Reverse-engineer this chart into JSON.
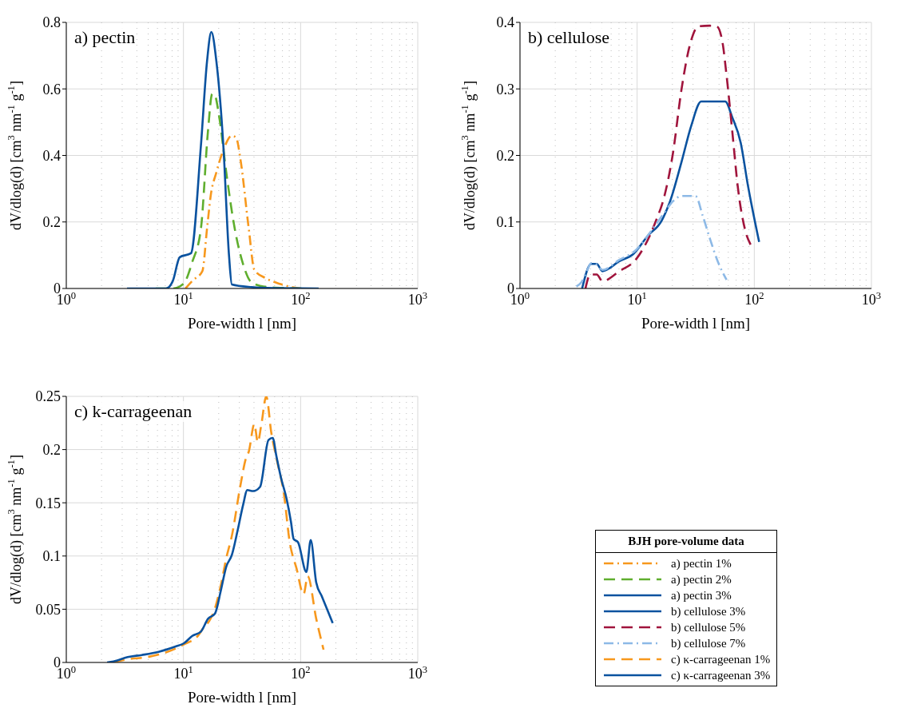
{
  "chart_data": [
    {
      "type": "line",
      "title": "a) pectin",
      "xlabel": "Pore-width l [nm]",
      "ylabel": "dV/dlog(d) [cm$^{3}$ nm$^{-1}$ g$^{-1}$]",
      "log": "x",
      "grid": true,
      "legend": "bottom right",
      "xlim": [
        1,
        1000
      ],
      "ylim": [
        0,
        0.8
      ],
      "yticks": [
        0,
        0.2,
        0.4,
        0.6,
        0.8
      ],
      "xticks": [
        {
          "value": 1,
          "label": "10$^{0}$"
        },
        {
          "value": 2,
          "label": null
        },
        {
          "value": 3,
          "label": null
        },
        {
          "value": 4,
          "label": null
        },
        {
          "value": 5,
          "label": null
        },
        {
          "value": 6,
          "label": null
        },
        {
          "value": 7,
          "label": null
        },
        {
          "value": 8,
          "label": null
        },
        {
          "value": 9,
          "label": null
        },
        {
          "value": 10,
          "label": "10$^{1}$"
        },
        {
          "value": 20,
          "label": null
        },
        {
          "value": 30,
          "label": null
        },
        {
          "value": 40,
          "label": null
        },
        {
          "value": 50,
          "label": null
        },
        {
          "value": 60,
          "label": null
        },
        {
          "value": 70,
          "label": null
        },
        {
          "value": 80,
          "label": null
        },
        {
          "value": 90,
          "label": null
        },
        {
          "value": 100,
          "label": "10$^{2}$"
        },
        {
          "value": 200,
          "label": null
        },
        {
          "value": 300,
          "label": null
        },
        {
          "value": 400,
          "label": null
        },
        {
          "value": 500,
          "label": null
        },
        {
          "value": 600,
          "label": null
        },
        {
          "value": 700,
          "label": null
        },
        {
          "value": 800,
          "label": null
        },
        {
          "value": 900,
          "label": null
        },
        {
          "value": 1000,
          "label": "10$^{3}$"
        }
      ],
      "series": [
        {
          "name": "a) pectin 1%",
          "color": "#f7981d",
          "line_style": "dashdot",
          "x": [
            10.4,
            11.9,
            14.5,
            15.9,
            17.1,
            19.1,
            21.9,
            25.9,
            28.2,
            30.6,
            36.1,
            40.3,
            50.3,
            66.4,
            87.5,
            100
          ],
          "values": [
            0,
            0.023,
            0.052,
            0.18,
            0.28,
            0.349,
            0.416,
            0.459,
            0.453,
            0.39,
            0.18,
            0.056,
            0.031,
            0.014,
            0.003,
            0
          ]
        },
        {
          "name": "a) pectin 2%",
          "color": "#5fae2e",
          "line_style": "dashed",
          "x": [
            5.8,
            8.1,
            10,
            11.9,
            14.1,
            16.2,
            17.6,
            18.4,
            20.2,
            23.2,
            27.4,
            32.3,
            38.2,
            50.3,
            78,
            103
          ],
          "values": [
            0,
            0,
            0.014,
            0.08,
            0.18,
            0.474,
            0.585,
            0.583,
            0.516,
            0.349,
            0.18,
            0.073,
            0.018,
            0.005,
            0.001,
            0
          ]
        },
        {
          "name": "a) pectin 3%",
          "color": "#0a529f",
          "line_style": "solid",
          "x": [
            3.3,
            7.1,
            8.1,
            9.3,
            11.6,
            14.1,
            15.9,
            17.3,
            19.1,
            21.9,
            24.5,
            25.9,
            38.2,
            59.4,
            142.6
          ],
          "values": [
            0,
            0,
            0.022,
            0.094,
            0.106,
            0.43,
            0.683,
            0.771,
            0.683,
            0.43,
            0.098,
            0.012,
            0.004,
            0.001,
            0
          ]
        }
      ]
    },
    {
      "type": "line",
      "title": "b) cellulose",
      "xlabel": "Pore-width l [nm]",
      "ylabel": "dV/dlog(d) [cm$^{3}$ nm$^{-1}$ g$^{-1}$]",
      "log": "x",
      "grid": true,
      "legend": "bottom",
      "xlim": [
        1,
        1000
      ],
      "ylim": [
        0,
        0.4
      ],
      "yticks": [
        0,
        0.1,
        0.2,
        0.3,
        0.4
      ],
      "xticks": [
        {
          "value": 1,
          "label": "10$^{0}$"
        },
        {
          "value": 2,
          "label": null
        },
        {
          "value": 3,
          "label": null
        },
        {
          "value": 4,
          "label": null
        },
        {
          "value": 5,
          "label": null
        },
        {
          "value": 6,
          "label": null
        },
        {
          "value": 7,
          "label": null
        },
        {
          "value": 8,
          "label": null
        },
        {
          "value": 9,
          "label": null
        },
        {
          "value": 10,
          "label": "10$^{1}$"
        },
        {
          "value": 20,
          "label": null
        },
        {
          "value": 30,
          "label": null
        },
        {
          "value": 40,
          "label": null
        },
        {
          "value": 50,
          "label": null
        },
        {
          "value": 60,
          "label": null
        },
        {
          "value": 70,
          "label": null
        },
        {
          "value": 80,
          "label": null
        },
        {
          "value": 90,
          "label": null
        },
        {
          "value": 100,
          "label": "10$^{2}$"
        },
        {
          "value": 200,
          "label": null
        },
        {
          "value": 300,
          "label": null
        },
        {
          "value": 400,
          "label": null
        },
        {
          "value": 500,
          "label": null
        },
        {
          "value": 600,
          "label": null
        },
        {
          "value": 700,
          "label": null
        },
        {
          "value": 800,
          "label": null
        },
        {
          "value": 900,
          "label": null
        },
        {
          "value": 1000,
          "label": "10$^{3}$"
        }
      ],
      "series": [
        {
          "name": "b) cellulose 3%",
          "color": "#0a529f",
          "line_style": "solid",
          "x": [
            3.39,
            4.05,
            4.52,
            5.05,
            7.05,
            9.3,
            12.3,
            16.2,
            19.1,
            23.9,
            29,
            35.2,
            56.5,
            64.9,
            76.6,
            88,
            110
          ],
          "values": [
            0,
            0.037,
            0.037,
            0.026,
            0.041,
            0.052,
            0.079,
            0.102,
            0.131,
            0.19,
            0.245,
            0.281,
            0.281,
            0.257,
            0.219,
            0.156,
            0.07
          ]
        },
        {
          "name": "b) cellulose 5%",
          "color": "#a0143c",
          "line_style": "dashed",
          "x": [
            3.62,
            3.98,
            4.52,
            5.05,
            7.05,
            9.8,
            11.6,
            14.5,
            17.1,
            20.2,
            23.9,
            28.2,
            33.3,
            41.6,
            47.8,
            53.4,
            58,
            64.9,
            72.4,
            83.2,
            93
          ],
          "values": [
            0,
            0.021,
            0.021,
            0.011,
            0.026,
            0.044,
            0.064,
            0.102,
            0.139,
            0.203,
            0.299,
            0.366,
            0.394,
            0.395,
            0.394,
            0.371,
            0.32,
            0.236,
            0.152,
            0.089,
            0.066
          ]
        },
        {
          "name": "b) cellulose 7%",
          "color": "#8db9e6",
          "line_style": "dashdot",
          "x": [
            3.03,
            3.33,
            3.72,
            4.05,
            4.52,
            5.05,
            7.05,
            9.8,
            13,
            17.1,
            20.2,
            23.9,
            31.5,
            36.2,
            41.6,
            49.2,
            58
          ],
          "values": [
            0.003,
            0.009,
            0.026,
            0.038,
            0.036,
            0.028,
            0.043,
            0.058,
            0.085,
            0.114,
            0.131,
            0.139,
            0.139,
            0.11,
            0.076,
            0.039,
            0.013
          ]
        }
      ]
    },
    {
      "type": "line",
      "title": "c) k-carrageenan",
      "xlabel": "Pore-width l [nm]",
      "ylabel": "dV/dlog(d) [cm$^{3}$ nm$^{-1}$ g$^{-1}$]",
      "log": "x",
      "grid": true,
      "legend": "right",
      "legend_title": "BJH pore-volume data",
      "xlim": [
        1,
        1000
      ],
      "ylim": [
        0,
        0.25
      ],
      "yticks": [
        0,
        0.05,
        0.1,
        0.15,
        0.2,
        0.25
      ],
      "xticks": [
        {
          "value": 1,
          "label": "10$^{0}$"
        },
        {
          "value": 2,
          "label": null
        },
        {
          "value": 3,
          "label": null
        },
        {
          "value": 4,
          "label": null
        },
        {
          "value": 5,
          "label": null
        },
        {
          "value": 6,
          "label": null
        },
        {
          "value": 7,
          "label": null
        },
        {
          "value": 8,
          "label": null
        },
        {
          "value": 9,
          "label": null
        },
        {
          "value": 10,
          "label": "10$^{1}$"
        },
        {
          "value": 20,
          "label": null
        },
        {
          "value": 30,
          "label": null
        },
        {
          "value": 40,
          "label": null
        },
        {
          "value": 50,
          "label": null
        },
        {
          "value": 60,
          "label": null
        },
        {
          "value": 70,
          "label": null
        },
        {
          "value": 80,
          "label": null
        },
        {
          "value": 90,
          "label": null
        },
        {
          "value": 100,
          "label": "10$^{2}$"
        },
        {
          "value": 200,
          "label": null
        },
        {
          "value": 300,
          "label": null
        },
        {
          "value": 400,
          "label": null
        },
        {
          "value": 500,
          "label": null
        },
        {
          "value": 600,
          "label": null
        },
        {
          "value": 700,
          "label": null
        },
        {
          "value": 800,
          "label": null
        },
        {
          "value": 900,
          "label": null
        },
        {
          "value": 1000,
          "label": "10$^{3}$"
        }
      ],
      "series": [
        {
          "name": "c) κ-carrageenan 1%",
          "color": "#f7981d",
          "line_style": "dashed",
          "x": [
            2.53,
            3.34,
            4.92,
            8.57,
            10.1,
            13.3,
            14.9,
            16.6,
            18.6,
            20.8,
            23.2,
            25.9,
            30.6,
            34.2,
            36.1,
            40.3,
            43.1,
            46.3,
            50.9,
            56.2,
            62.8,
            72.1,
            80.5,
            92.5,
            106,
            115,
            136,
            157
          ],
          "values": [
            0,
            0.003,
            0.005,
            0.013,
            0.017,
            0.025,
            0.033,
            0.039,
            0.051,
            0.072,
            0.098,
            0.119,
            0.166,
            0.192,
            0.198,
            0.224,
            0.207,
            0.224,
            0.25,
            0.216,
            0.19,
            0.158,
            0.114,
            0.088,
            0.064,
            0.081,
            0.041,
            0.012
          ]
        },
        {
          "name": "c) κ-carrageenan 3%",
          "color": "#0a529f",
          "line_style": "solid",
          "x": [
            2.23,
            2.53,
            3.34,
            4.41,
            6.14,
            8.57,
            10.1,
            11.9,
            14.1,
            16.2,
            18.6,
            20.8,
            23.2,
            25.9,
            29,
            32.3,
            35.1,
            39.3,
            45.1,
            53.2,
            57.8,
            62.1,
            68.2,
            76.2,
            82.8,
            87.2,
            95,
            112,
            122,
            136,
            152,
            188
          ],
          "values": [
            0,
            0.001,
            0.005,
            0.007,
            0.01,
            0.015,
            0.018,
            0.025,
            0.029,
            0.041,
            0.046,
            0.067,
            0.09,
            0.101,
            0.124,
            0.148,
            0.162,
            0.161,
            0.165,
            0.209,
            0.211,
            0.194,
            0.173,
            0.153,
            0.132,
            0.116,
            0.113,
            0.085,
            0.115,
            0.075,
            0.062,
            0.037
          ]
        }
      ]
    }
  ]
}
